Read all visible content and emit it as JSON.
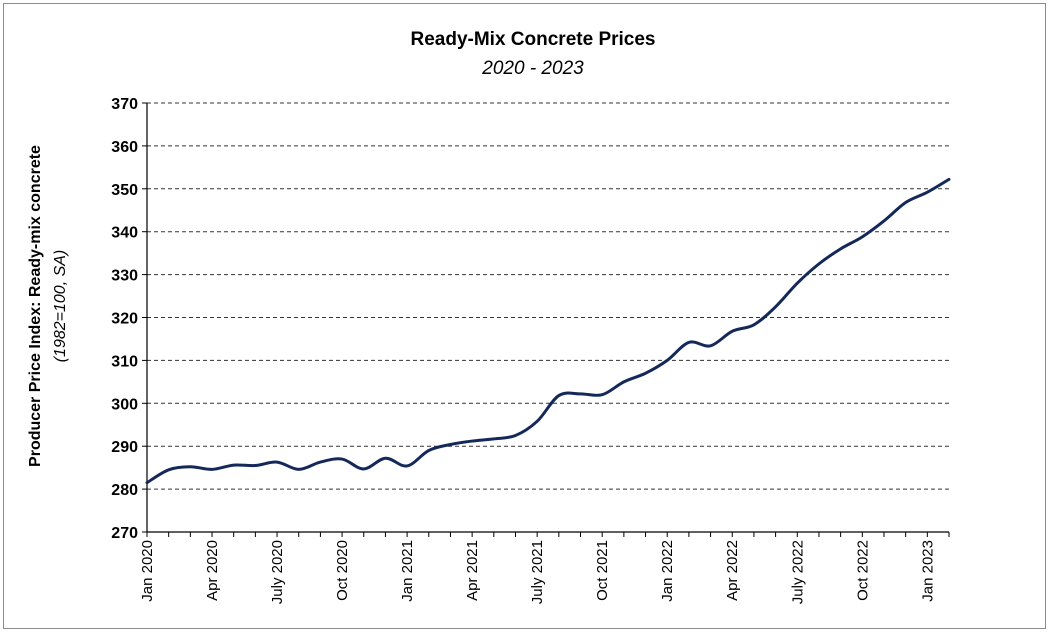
{
  "chart_data": {
    "type": "line",
    "title": "Ready-Mix Concrete Prices",
    "subtitle": "2020 - 2023",
    "ylabel": "Producer Price Index: Ready-mix concrete",
    "ylabel_note": "(1982=100, SA)",
    "xlabel": "",
    "ylim": [
      270,
      370
    ],
    "yticks": [
      270,
      280,
      290,
      300,
      310,
      320,
      330,
      340,
      350,
      360,
      370
    ],
    "grid": "horizontal dashed",
    "legend": "none",
    "line_color": "#14285a",
    "x_tick_labels": [
      "Jan 2020",
      "Apr 2020",
      "July 2020",
      "Oct 2020",
      "Jan 2021",
      "Apr 2021",
      "July 2021",
      "Oct 2021",
      "Jan 2022",
      "Apr 2022",
      "July 2022",
      "Oct 2022",
      "Jan 2023"
    ],
    "x": [
      "2020-01",
      "2020-02",
      "2020-03",
      "2020-04",
      "2020-05",
      "2020-06",
      "2020-07",
      "2020-08",
      "2020-09",
      "2020-10",
      "2020-11",
      "2020-12",
      "2021-01",
      "2021-02",
      "2021-03",
      "2021-04",
      "2021-05",
      "2021-06",
      "2021-07",
      "2021-08",
      "2021-09",
      "2021-10",
      "2021-11",
      "2021-12",
      "2022-01",
      "2022-02",
      "2022-03",
      "2022-04",
      "2022-05",
      "2022-06",
      "2022-07",
      "2022-08",
      "2022-09",
      "2022-10",
      "2022-11",
      "2022-12",
      "2023-01",
      "2023-02"
    ],
    "series": [
      {
        "values": [
          281.5,
          284.5,
          285.2,
          284.6,
          285.6,
          285.5,
          286.3,
          284.6,
          286.3,
          287.0,
          284.7,
          287.2,
          285.4,
          289.0,
          290.4,
          291.2,
          291.7,
          292.5,
          295.8,
          301.8,
          302.2,
          302.0,
          305.0,
          307.0,
          310.0,
          314.2,
          313.4,
          316.8,
          318.3,
          322.5,
          328.0,
          332.5,
          336.0,
          338.8,
          342.5,
          346.8,
          349.2,
          352.2
        ]
      }
    ]
  }
}
